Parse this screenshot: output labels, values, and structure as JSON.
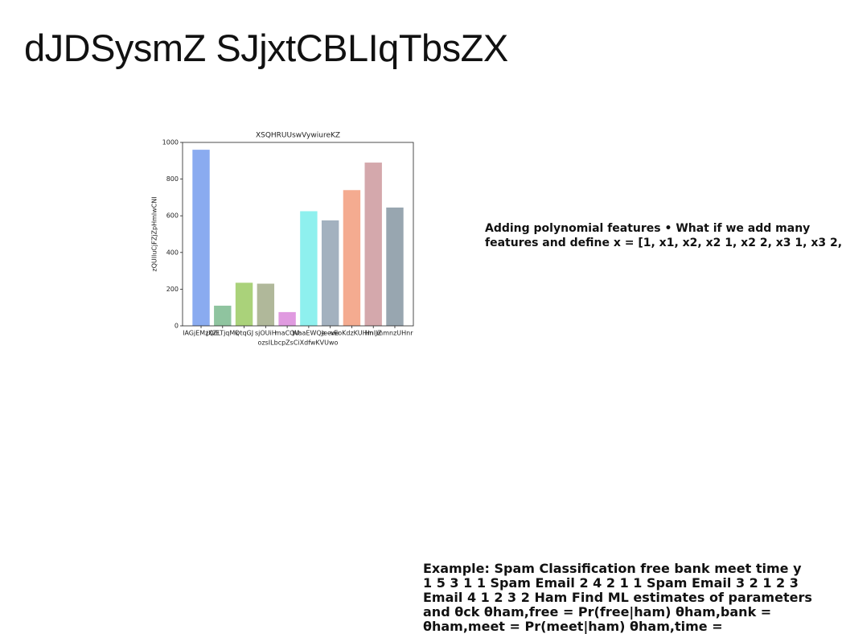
{
  "title": "dJDSysmZ SJjxtCBLIqTbsZX",
  "chart_data": {
    "type": "bar",
    "title": "XSQHRUUswVywiureKZ",
    "x_label": "ozsILbcpZsCiXdfwKVUwo",
    "y_label": "zQUIluCjFZjZpHmlwCNI",
    "categories": [
      "IAGjEMzQiE",
      "jXZLTjqMk",
      "QtqGJ",
      "sjOUiH",
      "maCQU",
      "WaaEWQe",
      "Jeeve",
      "vEoKdzKUHm",
      "HnlJZ",
      "mmnzUHnr"
    ],
    "values": [
      960,
      110,
      235,
      230,
      75,
      625,
      575,
      740,
      890,
      645
    ],
    "colors": [
      "#8aabf0",
      "#8fc49f",
      "#aad27a",
      "#b0b89a",
      "#e09ae0",
      "#8ef0ee",
      "#a3b1bf",
      "#f4ab90",
      "#d4a8ac",
      "#98a6b0"
    ],
    "ylim": [
      0,
      1000
    ],
    "yticks": [
      0,
      200,
      400,
      600,
      800,
      1000
    ]
  },
  "text_blocks": [
    {
      "lines": [
        "Adding polynomial features • What if we add many",
        "features and define x = [1, x1, x2, x2 1, x2 2, x3 1, x3 2,"
      ]
    },
    {
      "lines": [
        "Example: Spam Classification free bank meet time y",
        "1 5 3 1 1 Spam Email 2 4 2 1 1 Spam Email 3 2 1 2 3",
        "Email 4 1 2 3 2 Ham Find ML estimates of parameters",
        "and θck θham,free = Pr(free|ham) θham,bank =",
        "θham,meet = Pr(meet|ham) θham,time ="
      ]
    }
  ]
}
